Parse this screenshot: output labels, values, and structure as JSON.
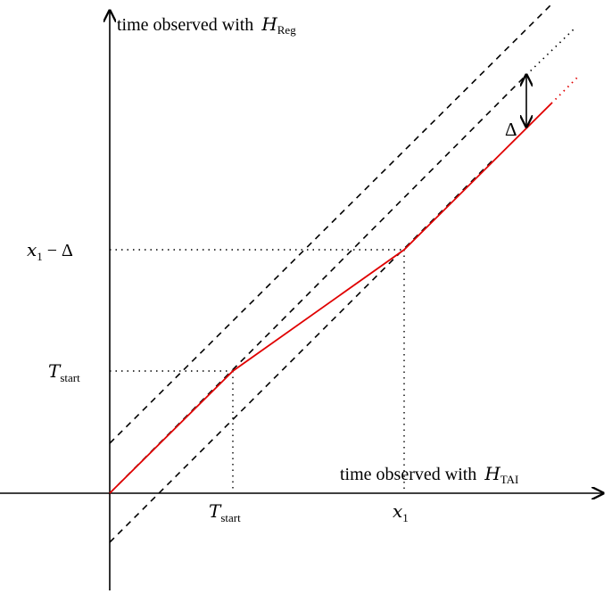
{
  "axes": {
    "x_label": "time observed with",
    "x_clock_symbol": "H",
    "x_clock_subscript": "TAI",
    "y_label": "time observed with",
    "y_clock_symbol": "H",
    "y_clock_subscript": "Reg"
  },
  "ticks": {
    "x": [
      {
        "symbol": "T",
        "subscript": "start"
      },
      {
        "symbol": "x",
        "subscript": "1"
      }
    ],
    "y": [
      {
        "symbol": "T",
        "subscript": "start"
      },
      {
        "symbol": "x",
        "subscript": "1",
        "suffix": " − Δ"
      }
    ]
  },
  "annotations": {
    "offset_label": "Δ"
  },
  "colors": {
    "curve": "#e00000",
    "axes": "#000000",
    "guides": "#000000"
  }
}
